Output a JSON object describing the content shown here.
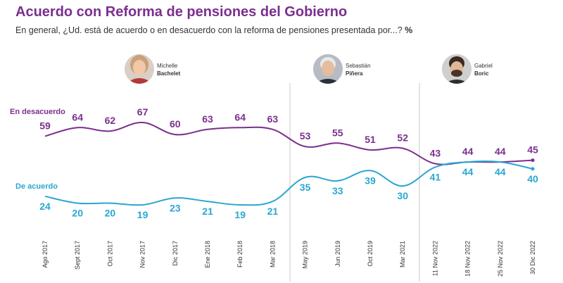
{
  "header": {
    "title": "Acuerdo con Reforma de pensiones del Gobierno",
    "subtitle": "En general, ¿Ud. está de acuerdo o en desacuerdo con la reforma de pensiones presentada por...?",
    "unit": "%"
  },
  "presidents": [
    {
      "first": "Michelle",
      "last": "Bachelet",
      "icon": "woman-portrait-icon"
    },
    {
      "first": "Sebastián",
      "last": "Piñera",
      "icon": "man-portrait-icon"
    },
    {
      "first": "Gabriel",
      "last": "Boric",
      "icon": "man-portrait-icon"
    }
  ],
  "colors": {
    "desacuerdo": "#7b2f8e",
    "acuerdo": "#2aa7d1",
    "divider": "#c8c8c8"
  },
  "chart_data": {
    "type": "line",
    "categories": [
      "Ago 2017",
      "Sept 2017",
      "Oct 2017",
      "Nov 2017",
      "Dic 2017",
      "Ene 2018",
      "Feb 2018",
      "Mar 2018",
      "May 2019",
      "Jun 2019",
      "Oct 2019",
      "Mar 2021",
      "11 Nov 2022",
      "18 Nov 2022",
      "25 Nov 2022",
      "30 Dic 2022"
    ],
    "series": [
      {
        "name": "En desacuerdo",
        "values": [
          59,
          64,
          62,
          67,
          60,
          63,
          64,
          63,
          53,
          55,
          51,
          52,
          43,
          44,
          44,
          45
        ]
      },
      {
        "name": "De acuerdo",
        "values": [
          24,
          20,
          20,
          19,
          23,
          21,
          19,
          21,
          35,
          33,
          39,
          30,
          41,
          44,
          44,
          40
        ]
      }
    ],
    "government_periods": [
      {
        "president": "Michelle Bachelet",
        "from_category": "Ago 2017",
        "to_category": "Mar 2018"
      },
      {
        "president": "Sebastián Piñera",
        "from_category": "May 2019",
        "to_category": "Mar 2021"
      },
      {
        "president": "Gabriel Boric",
        "from_category": "11 Nov 2022",
        "to_category": "30 Dic 2022"
      }
    ],
    "grid": false,
    "legend": "inline labels at left"
  }
}
